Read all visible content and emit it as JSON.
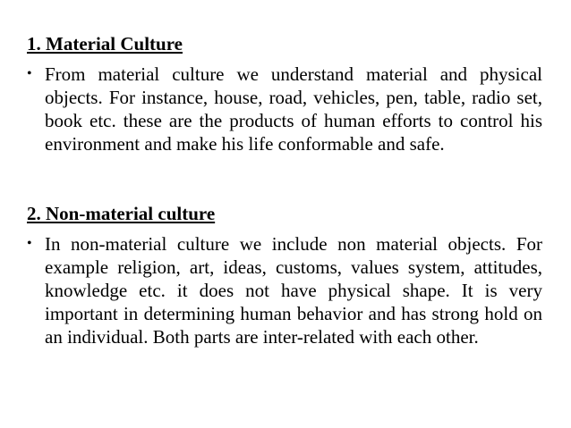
{
  "sections": [
    {
      "heading": "1. Material Culture",
      "bullet_symbol": "•",
      "text": "From material culture we understand material and physical objects. For instance, house, road, vehicles, pen, table, radio set, book etc. these are the products of human efforts to control his environment and make his life conformable and safe."
    },
    {
      "heading": "2. Non-material culture",
      "bullet_symbol": "•",
      "text": "In non-material culture we include non material objects. For example religion, art, ideas, customs, values system, attitudes, knowledge etc. it does not have physical shape. It is very important in determining human behavior and has strong hold on an individual. Both parts are inter-related with each other."
    }
  ]
}
